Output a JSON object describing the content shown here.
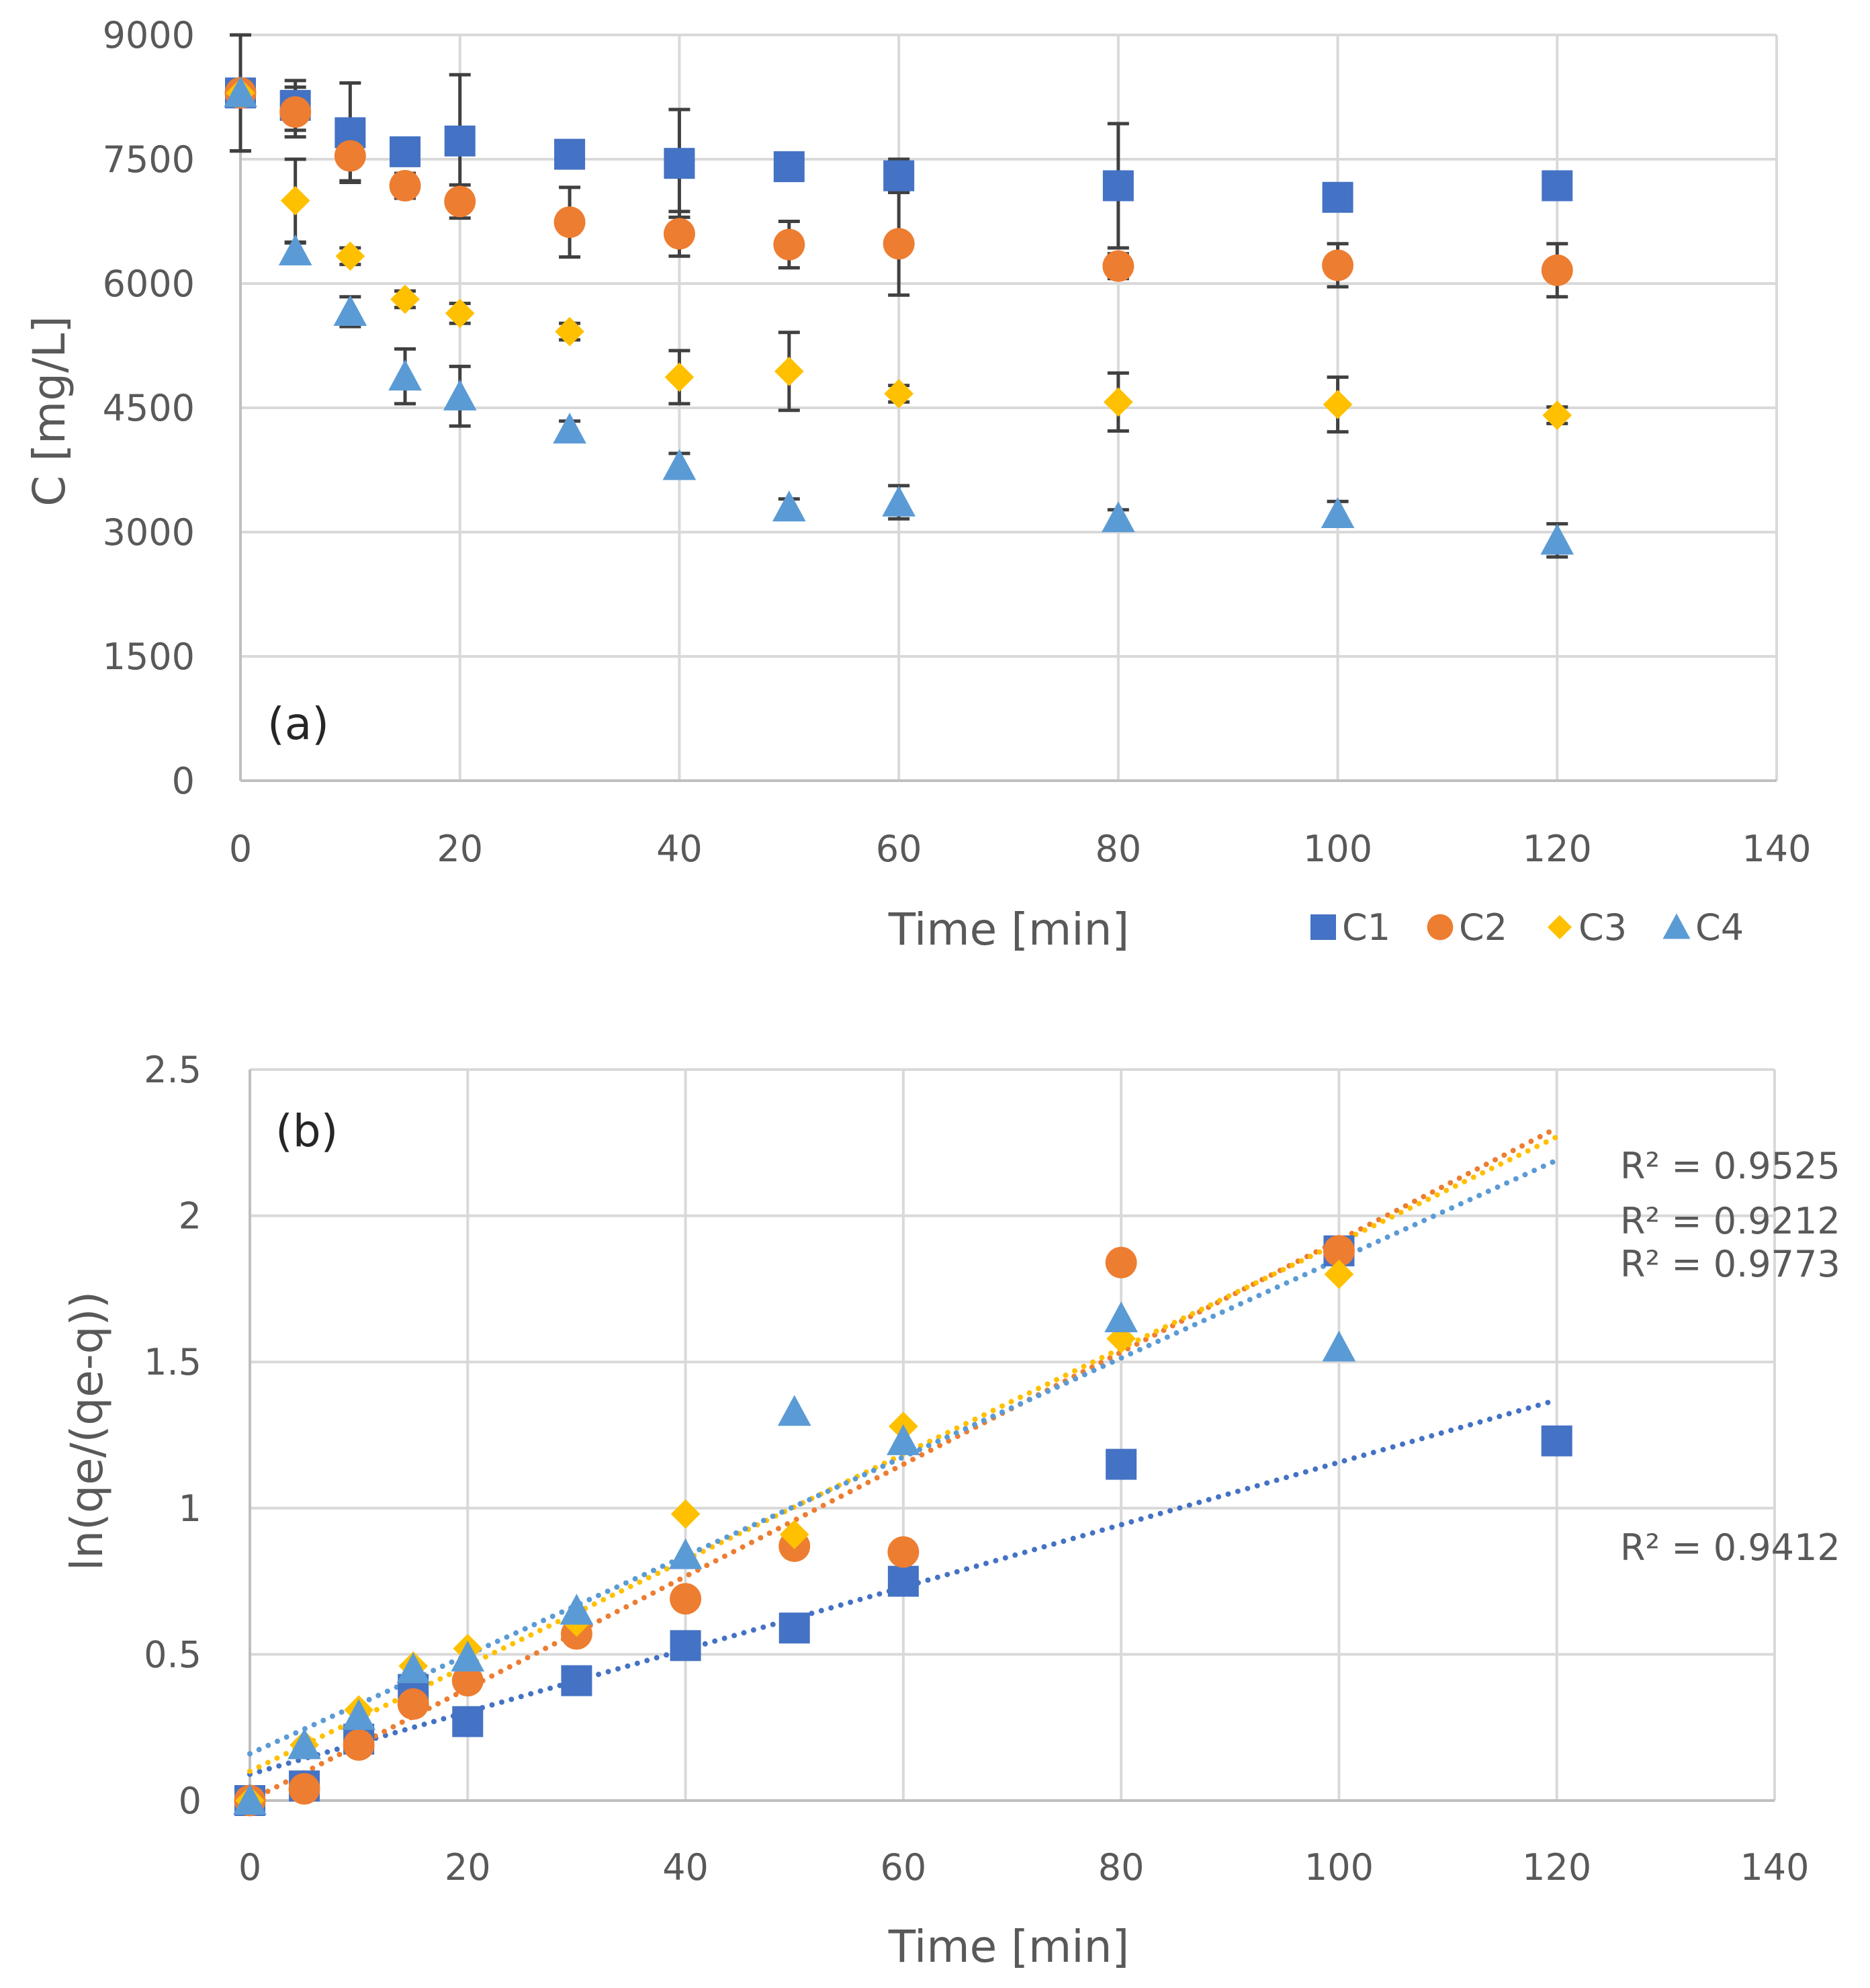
{
  "chart_data": [
    {
      "type": "scatter",
      "panel_label": "(a)",
      "xlabel": "Time [min]",
      "ylabel": "C [mg/L]",
      "xlim": [
        0,
        140
      ],
      "ylim": [
        0,
        9000
      ],
      "xticks": [
        0,
        20,
        40,
        60,
        80,
        100,
        120,
        140
      ],
      "yticks": [
        0,
        1500,
        3000,
        4500,
        6000,
        7500,
        9000
      ],
      "grid": true,
      "legend": "bottom-right",
      "series": [
        {
          "name": "C1",
          "marker": "square",
          "color": "#4472C4",
          "x": [
            0,
            5,
            10,
            15,
            20,
            30,
            40,
            50,
            60,
            80,
            100,
            120
          ],
          "y": [
            8300,
            8150,
            7820,
            7590,
            7720,
            7560,
            7450,
            7410,
            7300,
            7180,
            7040,
            7180
          ],
          "err": [
            700,
            300,
            600,
            150,
            800,
            150,
            650,
            150,
            200,
            750,
            150,
            150
          ]
        },
        {
          "name": "C2",
          "marker": "circle",
          "color": "#ED7D31",
          "x": [
            0,
            5,
            10,
            15,
            20,
            30,
            40,
            50,
            60,
            80,
            100,
            120
          ],
          "y": [
            8300,
            8070,
            7540,
            7180,
            6990,
            6740,
            6600,
            6470,
            6480,
            6210,
            6220,
            6160
          ],
          "err": [
            700,
            300,
            300,
            150,
            200,
            420,
            270,
            280,
            620,
            150,
            260,
            320
          ]
        },
        {
          "name": "C3",
          "marker": "diamond",
          "color": "#FFC000",
          "x": [
            0,
            5,
            10,
            15,
            20,
            30,
            40,
            50,
            60,
            80,
            100,
            120
          ],
          "y": [
            8300,
            7000,
            6330,
            5810,
            5640,
            5420,
            4870,
            4940,
            4670,
            4570,
            4540,
            4410
          ],
          "err": [
            700,
            500,
            100,
            100,
            120,
            100,
            320,
            470,
            100,
            350,
            330,
            100
          ]
        },
        {
          "name": "C4",
          "marker": "triangle",
          "color": "#5B9BD5",
          "x": [
            0,
            5,
            10,
            15,
            20,
            30,
            40,
            50,
            60,
            80,
            100,
            120
          ],
          "y": [
            8300,
            6390,
            5660,
            4880,
            4640,
            4240,
            3800,
            3300,
            3360,
            3170,
            3220,
            2900
          ],
          "err": [
            700,
            100,
            180,
            330,
            360,
            100,
            150,
            100,
            200,
            100,
            150,
            200
          ]
        }
      ]
    },
    {
      "type": "scatter",
      "panel_label": "(b)",
      "xlabel": "Time [min]",
      "ylabel": "ln(qe/(qe-q))",
      "xlim": [
        0,
        140
      ],
      "ylim": [
        0,
        2.5
      ],
      "xticks": [
        0,
        20,
        40,
        60,
        80,
        100,
        120,
        140
      ],
      "yticks": [
        0,
        0.5,
        1,
        1.5,
        2,
        2.5
      ],
      "grid": true,
      "series": [
        {
          "name": "C1",
          "marker": "square",
          "color": "#4472C4",
          "x": [
            0,
            5,
            10,
            15,
            20,
            30,
            40,
            50,
            60,
            80,
            100,
            120
          ],
          "y": [
            0,
            0.05,
            0.21,
            0.38,
            0.27,
            0.41,
            0.53,
            0.59,
            0.75,
            1.15,
            1.88,
            1.23
          ],
          "trend": {
            "x0": 0,
            "y0": 0.09,
            "x1": 120,
            "y1": 1.37
          }
        },
        {
          "name": "C2",
          "marker": "circle",
          "color": "#ED7D31",
          "x": [
            0,
            5,
            10,
            15,
            20,
            30,
            40,
            50,
            60,
            80,
            100
          ],
          "y": [
            0,
            0.04,
            0.19,
            0.33,
            0.41,
            0.57,
            0.69,
            0.87,
            0.85,
            1.84,
            1.88
          ],
          "trend": {
            "x0": 0,
            "y0": 0.0,
            "x1": 120,
            "y1": 2.3
          }
        },
        {
          "name": "C3",
          "marker": "diamond",
          "color": "#FFC000",
          "x": [
            0,
            5,
            10,
            15,
            20,
            30,
            40,
            50,
            60,
            80,
            100
          ],
          "y": [
            0,
            0.19,
            0.31,
            0.46,
            0.52,
            0.61,
            0.98,
            0.91,
            1.28,
            1.58,
            1.8
          ],
          "trend": {
            "x0": 0,
            "y0": 0.1,
            "x1": 120,
            "y1": 2.27
          }
        },
        {
          "name": "C4",
          "marker": "triangle",
          "color": "#5B9BD5",
          "x": [
            0,
            5,
            10,
            15,
            20,
            30,
            40,
            50,
            60,
            80,
            100
          ],
          "y": [
            0,
            0.19,
            0.29,
            0.45,
            0.49,
            0.65,
            0.84,
            1.33,
            1.23,
            1.65,
            1.55
          ],
          "trend": {
            "x0": 0,
            "y0": 0.16,
            "x1": 120,
            "y1": 2.19
          }
        }
      ],
      "annotations": [
        {
          "text": "R² = 0.9525",
          "at": "right-upper"
        },
        {
          "text": "R² = 0.9212",
          "at": "right-upper"
        },
        {
          "text": "R² = 0.9773",
          "at": "right-upper"
        },
        {
          "text": "R² = 0.9412",
          "at": "right-middle"
        }
      ]
    }
  ]
}
